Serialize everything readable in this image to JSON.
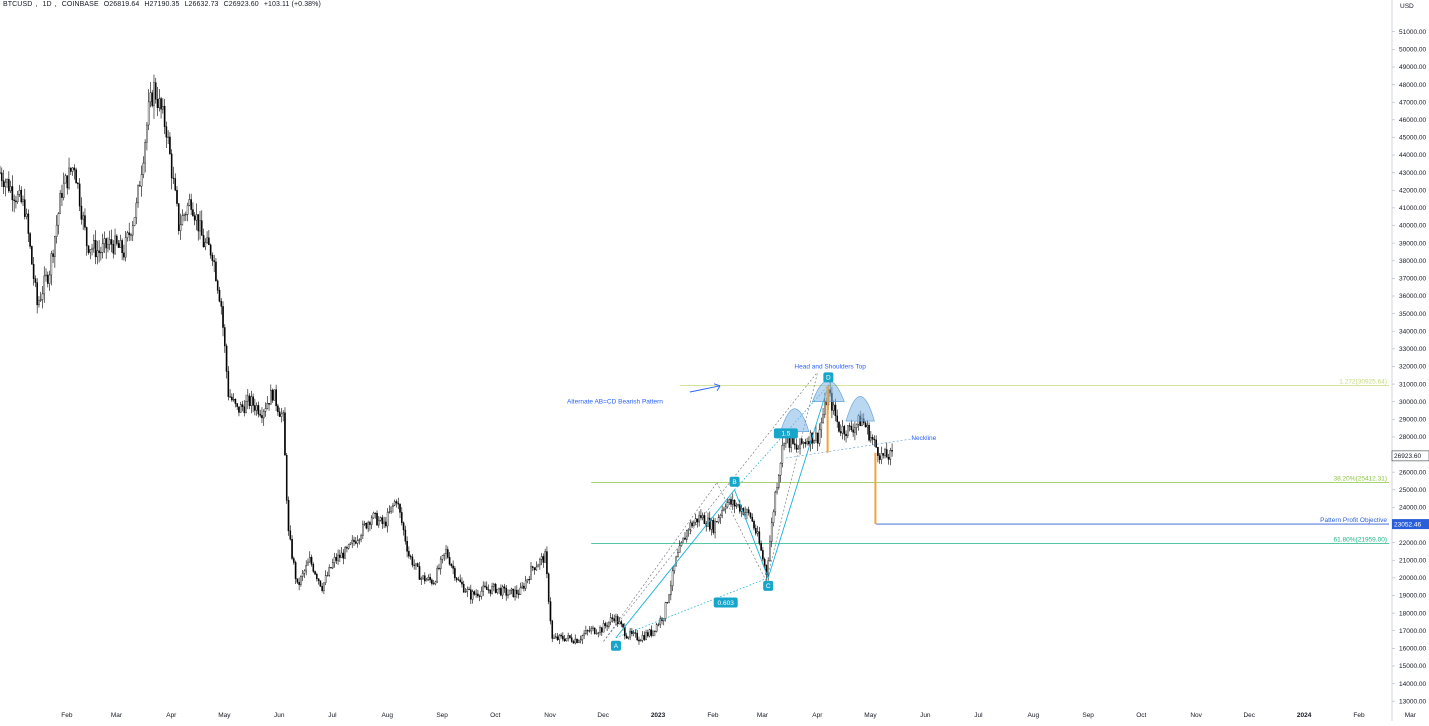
{
  "header": {
    "symbol": "BTCUSD",
    "interval": "1D",
    "exchange": "COINBASE",
    "open": "O26819.64",
    "high": "H27190.35",
    "low": "L26632.73",
    "close": "C26923.60",
    "change": "+103.11 (+0.38%)"
  },
  "colors": {
    "candle": "#000000",
    "axis_text": "#131722",
    "pattern_line": "#1ab2d6",
    "pattern_label_bg": "#17a5c9",
    "fib_1272": "#c5da7a",
    "fib_382": "#8cc43f",
    "fib_618": "#1fb386",
    "objective": "#2a5ed9",
    "projection": "#f3a33a",
    "shoulder_fill": "#7fb6e6",
    "annotation_text": "#2962ff",
    "price_tag": "#2a5ed9",
    "last_price_tag": "#ffffff"
  },
  "chart_data": {
    "type": "candlestick",
    "currency_label": "USD",
    "ylim": [
      12500,
      52800
    ],
    "y_ticks": [
      "51000.00",
      "50000.00",
      "49000.00",
      "48000.00",
      "47000.00",
      "46000.00",
      "45000.00",
      "44000.00",
      "43000.00",
      "42000.00",
      "41000.00",
      "40000.00",
      "39000.00",
      "38000.00",
      "37000.00",
      "36000.00",
      "35000.00",
      "34000.00",
      "33000.00",
      "32000.00",
      "31000.00",
      "30000.00",
      "29000.00",
      "28000.00",
      "27000.00",
      "26000.00",
      "25000.00",
      "24000.00",
      "23000.00",
      "22000.00",
      "21000.00",
      "20000.00",
      "19000.00",
      "18000.00",
      "17000.00",
      "16000.00",
      "15000.00",
      "14000.00",
      "13000.00"
    ],
    "x_ticks": [
      "Feb",
      "Mar",
      "Apr",
      "May",
      "Jun",
      "Jul",
      "Aug",
      "Sep",
      "Oct",
      "Nov",
      "Dec",
      "2023",
      "Feb",
      "Mar",
      "Apr",
      "May",
      "Jun",
      "Jul",
      "Aug",
      "Sep",
      "Oct",
      "Nov",
      "Dec",
      "2024",
      "Feb",
      "Mar"
    ],
    "last_price": "26923.60",
    "close_path": [
      [
        "2022-01-01",
        43000
      ],
      [
        "2022-01-08",
        42000
      ],
      [
        "2022-01-15",
        41000
      ],
      [
        "2022-01-22",
        35500
      ],
      [
        "2022-01-29",
        37500
      ],
      [
        "2022-02-05",
        42000
      ],
      [
        "2022-02-12",
        43500
      ],
      [
        "2022-02-19",
        39000
      ],
      [
        "2022-02-26",
        38500
      ],
      [
        "2022-03-05",
        39000
      ],
      [
        "2022-03-12",
        38500
      ],
      [
        "2022-03-19",
        41000
      ],
      [
        "2022-03-26",
        46500
      ],
      [
        "2022-03-29",
        47800
      ],
      [
        "2022-04-05",
        45500
      ],
      [
        "2022-04-12",
        40000
      ],
      [
        "2022-04-19",
        41500
      ],
      [
        "2022-04-26",
        39000
      ],
      [
        "2022-05-01",
        38500
      ],
      [
        "2022-05-06",
        35500
      ],
      [
        "2022-05-10",
        30500
      ],
      [
        "2022-05-15",
        29500
      ],
      [
        "2022-05-22",
        30000
      ],
      [
        "2022-05-29",
        29500
      ],
      [
        "2022-06-04",
        30500
      ],
      [
        "2022-06-10",
        29000
      ],
      [
        "2022-06-13",
        22500
      ],
      [
        "2022-06-18",
        19500
      ],
      [
        "2022-06-25",
        21000
      ],
      [
        "2022-07-02",
        19500
      ],
      [
        "2022-07-09",
        21000
      ],
      [
        "2022-07-16",
        21500
      ],
      [
        "2022-07-23",
        22500
      ],
      [
        "2022-07-30",
        23500
      ],
      [
        "2022-08-06",
        23000
      ],
      [
        "2022-08-13",
        24500
      ],
      [
        "2022-08-20",
        21300
      ],
      [
        "2022-08-27",
        20000
      ],
      [
        "2022-09-03",
        19800
      ],
      [
        "2022-09-10",
        21500
      ],
      [
        "2022-09-17",
        19800
      ],
      [
        "2022-09-24",
        19000
      ],
      [
        "2022-10-01",
        19300
      ],
      [
        "2022-10-08",
        19400
      ],
      [
        "2022-10-15",
        19100
      ],
      [
        "2022-10-22",
        19200
      ],
      [
        "2022-10-29",
        20600
      ],
      [
        "2022-11-05",
        21200
      ],
      [
        "2022-11-09",
        16500
      ],
      [
        "2022-11-16",
        16600
      ],
      [
        "2022-11-23",
        16500
      ],
      [
        "2022-11-30",
        17000
      ],
      [
        "2022-12-07",
        17100
      ],
      [
        "2022-12-14",
        17800
      ],
      [
        "2022-12-21",
        16800
      ],
      [
        "2022-12-28",
        16600
      ],
      [
        "2023-01-04",
        16900
      ],
      [
        "2023-01-11",
        17900
      ],
      [
        "2023-01-18",
        21000
      ],
      [
        "2023-01-25",
        22900
      ],
      [
        "2023-02-01",
        23500
      ],
      [
        "2023-02-08",
        22900
      ],
      [
        "2023-02-15",
        24300
      ],
      [
        "2023-02-22",
        24100
      ],
      [
        "2023-03-01",
        23500
      ],
      [
        "2023-03-05",
        22300
      ],
      [
        "2023-03-10",
        20300
      ],
      [
        "2023-03-15",
        24800
      ],
      [
        "2023-03-20",
        28000
      ],
      [
        "2023-03-27",
        27300
      ],
      [
        "2023-04-03",
        28000
      ],
      [
        "2023-04-08",
        28000
      ],
      [
        "2023-04-14",
        30500
      ],
      [
        "2023-04-20",
        28500
      ],
      [
        "2023-04-26",
        28400
      ],
      [
        "2023-05-03",
        29000
      ],
      [
        "2023-05-10",
        27600
      ],
      [
        "2023-05-14",
        26900
      ],
      [
        "2023-05-20",
        26900
      ]
    ],
    "pattern_points": [
      {
        "label": "A",
        "date": "2022-12-15",
        "price": 16600
      },
      {
        "label": "B",
        "date": "2023-02-20",
        "price": 25000
      },
      {
        "label": "C",
        "date": "2023-03-11",
        "price": 20000
      },
      {
        "label": "D",
        "date": "2023-04-14",
        "price": 30925
      }
    ],
    "ratios": [
      {
        "label": "0.603",
        "date": "2023-02-15",
        "price": 18600
      },
      {
        "label": "1.5",
        "date": "2023-03-21",
        "price": 28200
      }
    ],
    "levels": [
      {
        "name": "fib-1272",
        "label": "1.272(30925.64)",
        "value": 30925.64,
        "start": "2023-01-20"
      },
      {
        "name": "fib-382",
        "label": "38.20%(25412.31)",
        "value": 25412.31,
        "start": "2022-12-01"
      },
      {
        "name": "fib-618",
        "label": "61.80%(21959.00)",
        "value": 21959.0,
        "start": "2022-12-01"
      },
      {
        "name": "objective",
        "label": "Pattern Profit Objective",
        "value": 23052.46,
        "start": "2023-05-11",
        "tag": "23052.46"
      }
    ],
    "neckline": {
      "label": "Neckline",
      "start": [
        "2023-03-21",
        26800
      ],
      "end": [
        "2023-06-01",
        27900
      ]
    },
    "annotations": {
      "head_shoulders": "Head and Shoulders Top",
      "abcd": "Alternate AB=CD Bearish Pattern"
    }
  }
}
